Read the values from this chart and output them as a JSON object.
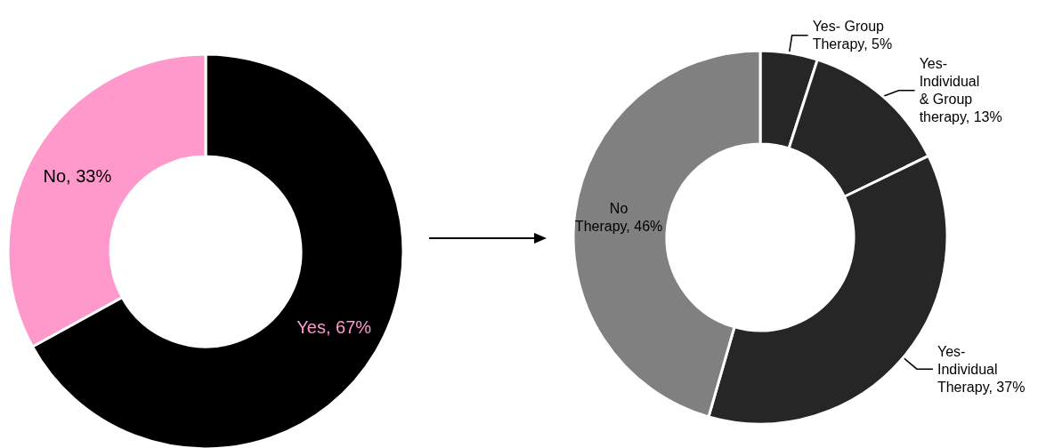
{
  "chart_data": [
    {
      "type": "donut",
      "categories": [
        "Yes",
        "No"
      ],
      "values": [
        67,
        33
      ],
      "colors": [
        "#000000",
        "#ff99cc"
      ],
      "value_labels": [
        "67%",
        "33%"
      ]
    },
    {
      "type": "donut",
      "categories": [
        "Yes- Group Therapy",
        "Yes- Individual & Group therapy",
        "Yes- Individual Therapy",
        "No Therapy"
      ],
      "values": [
        5,
        13,
        37,
        46
      ],
      "colors": [
        "#262626",
        "#262626",
        "#262626",
        "#808080"
      ],
      "value_labels": [
        "5%",
        "13%",
        "37%",
        "46%"
      ]
    }
  ]
}
